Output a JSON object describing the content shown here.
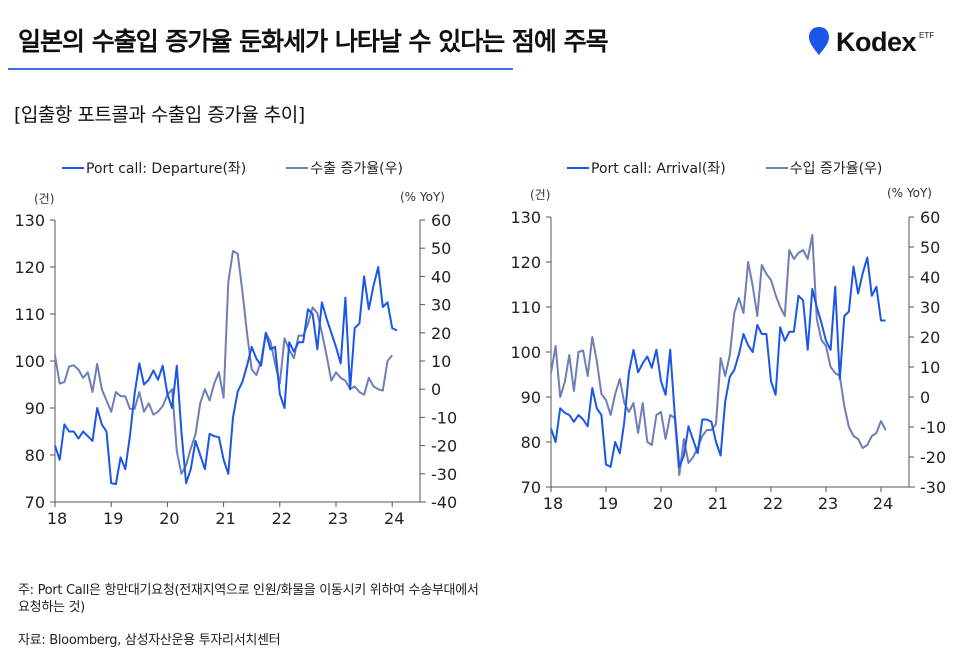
{
  "header": {
    "title": "일본의 수출입 증가율 둔화세가 나타날 수 있다는 점에 주목",
    "logo_text": "Kodex",
    "logo_suffix": "ETF",
    "accent_color": "#3f6fe6"
  },
  "subtitle": "[입출항 포트콜과 수출입 증가율 추이]",
  "footnote": {
    "note_line1": "주: Port Call은 항만대기요청(전재지역으로 인원/화물을 이동시키 위하여 수송부대에서",
    "note_line2": "요청하는 것)",
    "source": "자료: Bloomberg, 삼성자산운용 투자리서치센터"
  },
  "chart_data": [
    {
      "type": "line",
      "title": "",
      "left_unit": "(건)",
      "right_unit": "(% YoY)",
      "xlabel": "",
      "x_ticks": [
        "18",
        "19",
        "20",
        "21",
        "22",
        "23",
        "24"
      ],
      "x_range": [
        2018.0,
        2024.5
      ],
      "ylim_left": [
        70,
        130
      ],
      "yticks_left": [
        70,
        80,
        90,
        100,
        110,
        120,
        130
      ],
      "ylim_right": [
        -40,
        60
      ],
      "yticks_right": [
        -40,
        -30,
        -20,
        -10,
        0,
        10,
        20,
        30,
        40,
        50,
        60
      ],
      "series": [
        {
          "name": "Port call: Departure(좌)",
          "axis": "left",
          "color": "#1a56e8",
          "start": 2018.0,
          "step_months": 1,
          "values": [
            82,
            79,
            86.5,
            85,
            85,
            83.5,
            85,
            84,
            83,
            90,
            86.5,
            85,
            74,
            73.8,
            79.5,
            77,
            84,
            93,
            99.5,
            95,
            96,
            98,
            96,
            99,
            93,
            90,
            99,
            85,
            74,
            77,
            83,
            80,
            77,
            84.5,
            84,
            83.8,
            79,
            76,
            88,
            93.5,
            95.5,
            99,
            103,
            100.5,
            99,
            106,
            102.5,
            103,
            93,
            90,
            104,
            102,
            104,
            104,
            111,
            110,
            102.5,
            112.5,
            109,
            106,
            103,
            99.5,
            113.5,
            94,
            107,
            108,
            118,
            111,
            116,
            120,
            111.5,
            112.5,
            107,
            106.5
          ]
        },
        {
          "name": "수출 증가율(우)",
          "axis": "right",
          "color": "#6e7fb6",
          "start": 2018.0,
          "step_months": 1,
          "values": [
            12,
            2,
            2.5,
            8,
            8.5,
            7,
            4,
            6,
            -1,
            9,
            0,
            -4,
            -8,
            -1,
            -2.5,
            -2.5,
            -7,
            -7,
            -1,
            -8,
            -5,
            -9,
            -8,
            -6,
            -2,
            0,
            -22,
            -30,
            -27,
            -21,
            -16,
            -5,
            0,
            -4,
            2,
            6,
            -3,
            38,
            49,
            48,
            35,
            20,
            7,
            5,
            10,
            20,
            17,
            9,
            2,
            18,
            14,
            11,
            19,
            19,
            23,
            29,
            27,
            20,
            12,
            3,
            6,
            4,
            3,
            0,
            1,
            -1,
            -2,
            4,
            1,
            0,
            -0.5,
            10,
            12
          ]
        }
      ]
    },
    {
      "type": "line",
      "title": "",
      "left_unit": "(건)",
      "right_unit": "(% YoY)",
      "xlabel": "",
      "x_ticks": [
        "18",
        "19",
        "20",
        "21",
        "22",
        "23",
        "24"
      ],
      "x_range": [
        2018.0,
        2024.5
      ],
      "ylim_left": [
        70,
        130
      ],
      "yticks_left": [
        70,
        80,
        90,
        100,
        110,
        120,
        130
      ],
      "ylim_right": [
        -30,
        60
      ],
      "yticks_right": [
        -30,
        -20,
        -10,
        0,
        10,
        20,
        30,
        40,
        50,
        60
      ],
      "series": [
        {
          "name": "Port call: Arrival(좌)",
          "axis": "left",
          "color": "#1a56e8",
          "start": 2018.0,
          "step_months": 1,
          "values": [
            83,
            80,
            87.5,
            86.5,
            86,
            84.5,
            86,
            85,
            83.5,
            92,
            87.5,
            86,
            75,
            74.5,
            80,
            77.5,
            84.5,
            95.5,
            100.5,
            95.5,
            97.5,
            99,
            96.5,
            100.5,
            93.5,
            90.5,
            100.5,
            86,
            74.5,
            77,
            83.5,
            80.5,
            77.5,
            85,
            85,
            84.5,
            80,
            77,
            89,
            94.5,
            96,
            99.5,
            104,
            101.5,
            100,
            106,
            104,
            104,
            93.5,
            90.5,
            105.5,
            102.5,
            104.5,
            104.5,
            112.5,
            111.5,
            100.5,
            114,
            110,
            106.5,
            102.5,
            100.5,
            114.5,
            94,
            108,
            109,
            119,
            113,
            117.5,
            121,
            112.5,
            114.5,
            107,
            107
          ]
        },
        {
          "name": "수입 증가율(우)",
          "axis": "right",
          "color": "#6e7fb6",
          "start": 2018.0,
          "step_months": 1,
          "values": [
            8,
            17,
            0,
            5,
            14,
            2,
            15,
            15.5,
            7,
            20,
            12,
            1,
            -1,
            -6,
            1,
            6,
            -2,
            -5,
            -2,
            -12,
            -2,
            -15,
            -16,
            -6,
            -5,
            -14,
            -6,
            -7,
            -26,
            -14,
            -22,
            -20,
            -17,
            -13,
            -11,
            -11,
            -9,
            13,
            7,
            14,
            28,
            33,
            28,
            45,
            37,
            27,
            44,
            41,
            39,
            34,
            30,
            27,
            49,
            46,
            48,
            49,
            46,
            54,
            26,
            19,
            17,
            10,
            8,
            7,
            -3,
            -10,
            -13,
            -14,
            -17,
            -16,
            -13,
            -12,
            -8,
            -11
          ]
        }
      ]
    }
  ],
  "legends": [
    {
      "series1": "Port call: Departure(좌)",
      "series2": "수출 증가율(우)"
    },
    {
      "series1": "Port call: Arrival(좌)",
      "series2": "수입 증가율(우)"
    }
  ]
}
